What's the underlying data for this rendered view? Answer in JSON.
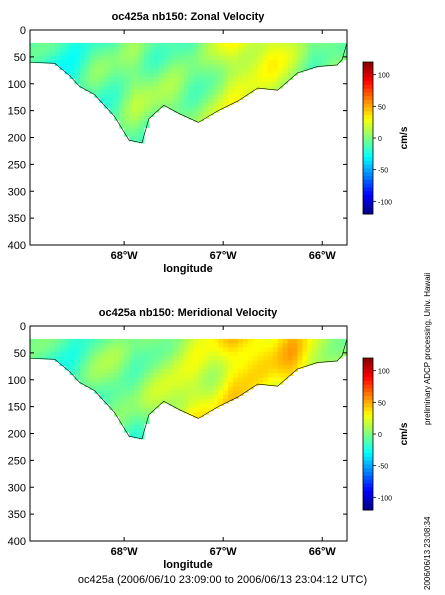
{
  "footer_text": "oc425a (2006/06/10 23:09:00 to 2006/06/13 23:04:12 UTC)",
  "side_note_processing": "preliminary ADCP processing,   Univ. Hawaii",
  "side_note_timestamp": "2006/06/13 23:08:34",
  "colors": {
    "axis": "#000000",
    "contour": "#000000",
    "background": "#ffffff"
  },
  "chart_data": [
    {
      "type": "heatmap",
      "title": "oc425a nb150: Zonal Velocity",
      "xlabel": "longitude",
      "ylabel": "",
      "x_ticks": [
        "68°W",
        "67°W",
        "66°W"
      ],
      "x_tick_values": [
        -68,
        -67,
        -66
      ],
      "xlim": [
        -68.95,
        -65.75
      ],
      "y_ticks": [
        "0",
        "50",
        "100",
        "150",
        "200",
        "250",
        "300",
        "350",
        "400"
      ],
      "y_tick_values": [
        0,
        50,
        100,
        150,
        200,
        250,
        300,
        350,
        400
      ],
      "ylim": [
        400,
        0
      ],
      "colorbar_label": "cm/s",
      "colorbar_ticks": [
        "100",
        "50",
        "0",
        "-50",
        "-100"
      ],
      "colorbar_tick_values": [
        100,
        50,
        0,
        -50,
        -100
      ],
      "clim": [
        -120,
        120
      ],
      "data_depth_range": [
        24,
        210
      ],
      "section_bottom_depth": [
        [
          -68.95,
          60
        ],
        [
          -68.7,
          62
        ],
        [
          -68.55,
          85
        ],
        [
          -68.45,
          105
        ],
        [
          -68.3,
          120
        ],
        [
          -68.1,
          160
        ],
        [
          -67.95,
          205
        ],
        [
          -67.82,
          210
        ],
        [
          -67.75,
          165
        ],
        [
          -67.6,
          140
        ],
        [
          -67.45,
          155
        ],
        [
          -67.25,
          172
        ],
        [
          -67.05,
          150
        ],
        [
          -66.85,
          132
        ],
        [
          -66.65,
          108
        ],
        [
          -66.45,
          112
        ],
        [
          -66.25,
          80
        ],
        [
          -66.05,
          68
        ],
        [
          -65.85,
          65
        ],
        [
          -65.8,
          55
        ]
      ],
      "value_by_longitude": [
        [
          -68.95,
          -15
        ],
        [
          -68.7,
          -20
        ],
        [
          -68.5,
          -25
        ],
        [
          -68.3,
          -8
        ],
        [
          -68.1,
          -12
        ],
        [
          -67.9,
          5
        ],
        [
          -67.7,
          -5
        ],
        [
          -67.5,
          3
        ],
        [
          -67.3,
          -6
        ],
        [
          -67.1,
          8
        ],
        [
          -66.9,
          25
        ],
        [
          -66.7,
          18
        ],
        [
          -66.5,
          22
        ],
        [
          -66.3,
          8
        ],
        [
          -66.1,
          -10
        ],
        [
          -65.9,
          5
        ]
      ]
    },
    {
      "type": "heatmap",
      "title": "oc425a nb150: Meridional Velocity",
      "xlabel": "longitude",
      "ylabel": "",
      "x_ticks": [
        "68°W",
        "67°W",
        "66°W"
      ],
      "x_tick_values": [
        -68,
        -67,
        -66
      ],
      "xlim": [
        -68.95,
        -65.75
      ],
      "y_ticks": [
        "0",
        "50",
        "100",
        "150",
        "200",
        "250",
        "300",
        "350",
        "400"
      ],
      "y_tick_values": [
        0,
        50,
        100,
        150,
        200,
        250,
        300,
        350,
        400
      ],
      "ylim": [
        400,
        0
      ],
      "colorbar_label": "cm/s",
      "colorbar_ticks": [
        "100",
        "50",
        "0",
        "-50",
        "-100"
      ],
      "colorbar_tick_values": [
        100,
        50,
        0,
        -50,
        -100
      ],
      "clim": [
        -120,
        120
      ],
      "data_depth_range": [
        24,
        210
      ],
      "section_bottom_depth": [
        [
          -68.95,
          60
        ],
        [
          -68.7,
          62
        ],
        [
          -68.55,
          85
        ],
        [
          -68.45,
          105
        ],
        [
          -68.3,
          120
        ],
        [
          -68.1,
          160
        ],
        [
          -67.95,
          205
        ],
        [
          -67.82,
          210
        ],
        [
          -67.75,
          165
        ],
        [
          -67.6,
          140
        ],
        [
          -67.45,
          155
        ],
        [
          -67.25,
          172
        ],
        [
          -67.05,
          150
        ],
        [
          -66.85,
          132
        ],
        [
          -66.65,
          108
        ],
        [
          -66.45,
          112
        ],
        [
          -66.25,
          80
        ],
        [
          -66.05,
          68
        ],
        [
          -65.85,
          65
        ],
        [
          -65.8,
          55
        ]
      ],
      "value_by_longitude": [
        [
          -68.95,
          -10
        ],
        [
          -68.7,
          -15
        ],
        [
          -68.5,
          -20
        ],
        [
          -68.3,
          -5
        ],
        [
          -68.1,
          0
        ],
        [
          -67.9,
          -8
        ],
        [
          -67.7,
          5
        ],
        [
          -67.5,
          12
        ],
        [
          -67.3,
          25
        ],
        [
          -67.1,
          20
        ],
        [
          -66.9,
          40
        ],
        [
          -66.7,
          35
        ],
        [
          -66.5,
          28
        ],
        [
          -66.3,
          42
        ],
        [
          -66.1,
          18
        ],
        [
          -65.9,
          10
        ]
      ]
    }
  ]
}
